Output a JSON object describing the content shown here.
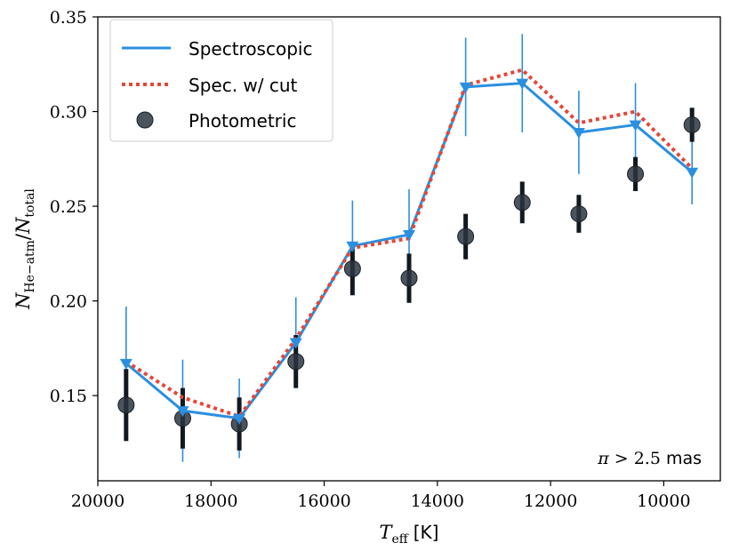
{
  "chart_data": {
    "type": "line",
    "xlabel_symbol": "T",
    "xlabel_sub": "eff",
    "xlabel_unit": "[K]",
    "ylabel_symbol_num": "N",
    "ylabel_sub_num": "He−atm",
    "ylabel_symbol_den": "N",
    "ylabel_sub_den": "total",
    "xlim": [
      20000,
      9000
    ],
    "ylim": [
      0.105,
      0.35
    ],
    "xticks": [
      20000,
      18000,
      16000,
      14000,
      12000,
      10000
    ],
    "xtick_labels": [
      "20000",
      "18000",
      "16000",
      "14000",
      "12000",
      "10000"
    ],
    "yticks": [
      0.15,
      0.2,
      0.25,
      0.3,
      0.35
    ],
    "ytick_labels": [
      "0.15",
      "0.20",
      "0.25",
      "0.30",
      "0.35"
    ],
    "x": [
      19500,
      18500,
      17500,
      16500,
      15500,
      14500,
      13500,
      12500,
      11500,
      10500,
      9500
    ],
    "series": [
      {
        "name": "Spectroscopic",
        "style": "solid-line-triangle-errorbars",
        "color": "#2b8fe0",
        "values": [
          0.167,
          0.142,
          0.138,
          0.178,
          0.229,
          0.235,
          0.313,
          0.315,
          0.289,
          0.293,
          0.268
        ],
        "errors": [
          0.03,
          0.027,
          0.021,
          0.024,
          0.024,
          0.024,
          0.026,
          0.026,
          0.022,
          0.022,
          0.017
        ]
      },
      {
        "name": "Spec. w/ cut",
        "style": "dotted-line",
        "color": "#e2483a",
        "values": [
          0.168,
          0.149,
          0.139,
          0.18,
          0.228,
          0.233,
          0.314,
          0.322,
          0.294,
          0.3,
          0.27
        ]
      },
      {
        "name": "Photometric",
        "style": "circle-errorbars",
        "color": "#2c3540",
        "values": [
          0.145,
          0.138,
          0.135,
          0.168,
          0.217,
          0.212,
          0.234,
          0.252,
          0.246,
          0.267,
          0.293
        ],
        "errors": [
          0.019,
          0.016,
          0.014,
          0.014,
          0.014,
          0.013,
          0.012,
          0.011,
          0.01,
          0.009,
          0.009
        ]
      }
    ],
    "legend_position": "top-left",
    "annotation": {
      "symbol": "π",
      "relation": ">",
      "value": "2.5",
      "unit": "mas"
    },
    "grid": false
  }
}
